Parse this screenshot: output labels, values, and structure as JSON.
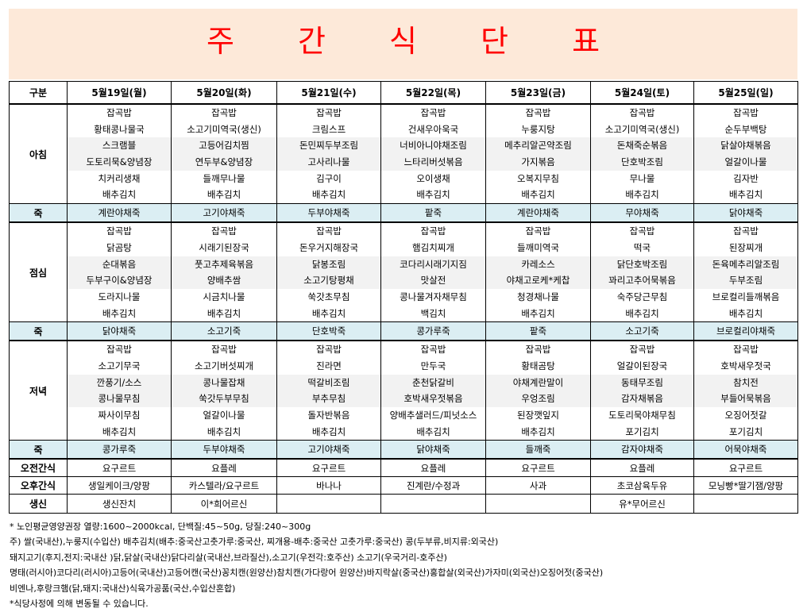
{
  "title": "주 간 식 단 표",
  "header": {
    "category": "구분",
    "days": [
      "5월19일(월)",
      "5월20일(화)",
      "5월21일(수)",
      "5월22일(목)",
      "5월23일(금)",
      "5월24일(토)",
      "5월25일(일)"
    ]
  },
  "rows": {
    "breakfast": {
      "label": "아침",
      "days": [
        [
          "잡곡밥",
          "황태콩나물국",
          "스크램블",
          "도토리묵&양념장",
          "치커리생채",
          "배추김치"
        ],
        [
          "잡곡밥",
          "소고기미역국(생신)",
          "고등어김치찜",
          "연두부&양념장",
          "들깨무나물",
          "배추김치"
        ],
        [
          "잡곡밥",
          "크림스프",
          "돈민찌두부조림",
          "고사리나물",
          "김구이",
          "배추김치"
        ],
        [
          "잡곡밥",
          "건새우아욱국",
          "너비아니야채조림",
          "느타리버섯볶음",
          "오이생채",
          "배추김치"
        ],
        [
          "잡곡밥",
          "누룽지탕",
          "메추리알곤약조림",
          "가지볶음",
          "오복지무침",
          "배추김치"
        ],
        [
          "잡곡밥",
          "소고기미역국(생신)",
          "돈채죽순볶음",
          "단호박조림",
          "무나물",
          "배추김치"
        ],
        [
          "잡곡밥",
          "순두부백탕",
          "닭살야채볶음",
          "얼갈이나물",
          "김자반",
          "배추김치"
        ]
      ]
    },
    "juk1": {
      "label": "죽",
      "days": [
        "계란야채죽",
        "고기야채죽",
        "두부야채죽",
        "팥죽",
        "계란야채죽",
        "무야채죽",
        "닭야채죽"
      ]
    },
    "lunch": {
      "label": "점심",
      "days": [
        [
          "잡곡밥",
          "닭곰탕",
          "순대볶음",
          "두부구이&양념장",
          "도라지나물",
          "배추김치"
        ],
        [
          "잡곡밥",
          "시래기된장국",
          "풋고추제육볶음",
          "양배추쌈",
          "시금치나물",
          "배추김치"
        ],
        [
          "잡곡밥",
          "돈우거지해장국",
          "닭봉조림",
          "소고기탕평채",
          "쑥갓초무침",
          "배추김치"
        ],
        [
          "잡곡밥",
          "햄김치찌개",
          "코다리시래기지짐",
          "맛살전",
          "콩나물겨자채무침",
          "백김치"
        ],
        [
          "잡곡밥",
          "들깨미역국",
          "카레소스",
          "야채고로케*케찹",
          "청경채나물",
          "배추김치"
        ],
        [
          "잡곡밥",
          "떡국",
          "닭단호박조림",
          "꽈리고추어묵볶음",
          "숙주당근무침",
          "배추김치"
        ],
        [
          "잡곡밥",
          "된장찌개",
          "돈육메추리알조림",
          "두부조림",
          "브로컬리들깨볶음",
          "배추김치"
        ]
      ]
    },
    "juk2": {
      "label": "죽",
      "days": [
        "닭야채죽",
        "소고기죽",
        "단호박죽",
        "콩가루죽",
        "팥죽",
        "소고기죽",
        "브로컬리야채죽"
      ]
    },
    "dinner": {
      "label": "저녁",
      "days": [
        [
          "잡곡밥",
          "소고기무국",
          "깐풍기/소스",
          "콩나물무침",
          "짜사이무침",
          "배추김치"
        ],
        [
          "잡곡밥",
          "소고기버섯찌개",
          "콩나물잡채",
          "쑥갓두부무침",
          "얼갈이나물",
          "배추김치"
        ],
        [
          "잡곡밥",
          "진라면",
          "떡갈비조림",
          "부추무침",
          "돌자반볶음",
          "배추김치"
        ],
        [
          "잡곡밥",
          "만두국",
          "춘천닭갈비",
          "호박새우젓볶음",
          "양배추샐러드/피넛소스",
          "배추김치"
        ],
        [
          "잡곡밥",
          "황태곰탕",
          "야채계란말이",
          "우엉조림",
          "된장깻잎지",
          "배추김치"
        ],
        [
          "잡곡밥",
          "얼갈이된장국",
          "동태무조림",
          "감자채볶음",
          "도토리묵야채무침",
          "포기김치"
        ],
        [
          "잡곡밥",
          "호박새우젓국",
          "참치전",
          "부들어묵볶음",
          "오징어젓갈",
          "포기김치"
        ]
      ]
    },
    "juk3": {
      "label": "죽",
      "days": [
        "콩가루죽",
        "두부야채죽",
        "고기야채죽",
        "닭야채죽",
        "들깨죽",
        "감자야채죽",
        "어묵야채죽"
      ]
    },
    "am_snack": {
      "label": "오전간식",
      "days": [
        "요구르트",
        "요플레",
        "요구르트",
        "요플레",
        "요구르트",
        "요플레",
        "요구르트"
      ]
    },
    "pm_snack": {
      "label": "오후간식",
      "days": [
        "생일케이크/양팡",
        "카스텔라/요구르트",
        "바나나",
        "진계란/수정과",
        "사과",
        "초코삼육두유",
        "모닝빵*딸기잼/양팡"
      ]
    },
    "sick": {
      "label": "생신",
      "days": [
        "생신잔치",
        "이*희어르신",
        "",
        "",
        "",
        "유*무어르신",
        ""
      ]
    }
  },
  "notes": [
    "* 노인평균영양권장 열량:1600~2000kcal, 단백질:45~50g, 당질:240~300g",
    "주) 쌀(국내산),누룽지(수입산) 배추김치(배추:중국산고춧가루:중국산, 찌개용-배추:중국산 고춧가루:중국산) 콩(두부류,비지류:외국산)",
    "돼지고기(후지,전지:국내산 )닭,닭살(국내산)닭다리살(국내산,브라질산),소고기(우전각:호주산) 소고기(우국거리-호주산)",
    "명태(러시아)코다리(러시아)고등어(국내산)고등어캔(국산)꽁치캔(원양산)참치캔(가다랑어 원양산)바지락살(중국산)홍합살(외국산)가자미(외국산)오징어젓(중국산)",
    "비엔나,후랑크햄(닭,돼지:국내산)식육가공품(국산,수입산혼합)",
    "*식당사정에 의해 변동될 수 있습니다."
  ]
}
